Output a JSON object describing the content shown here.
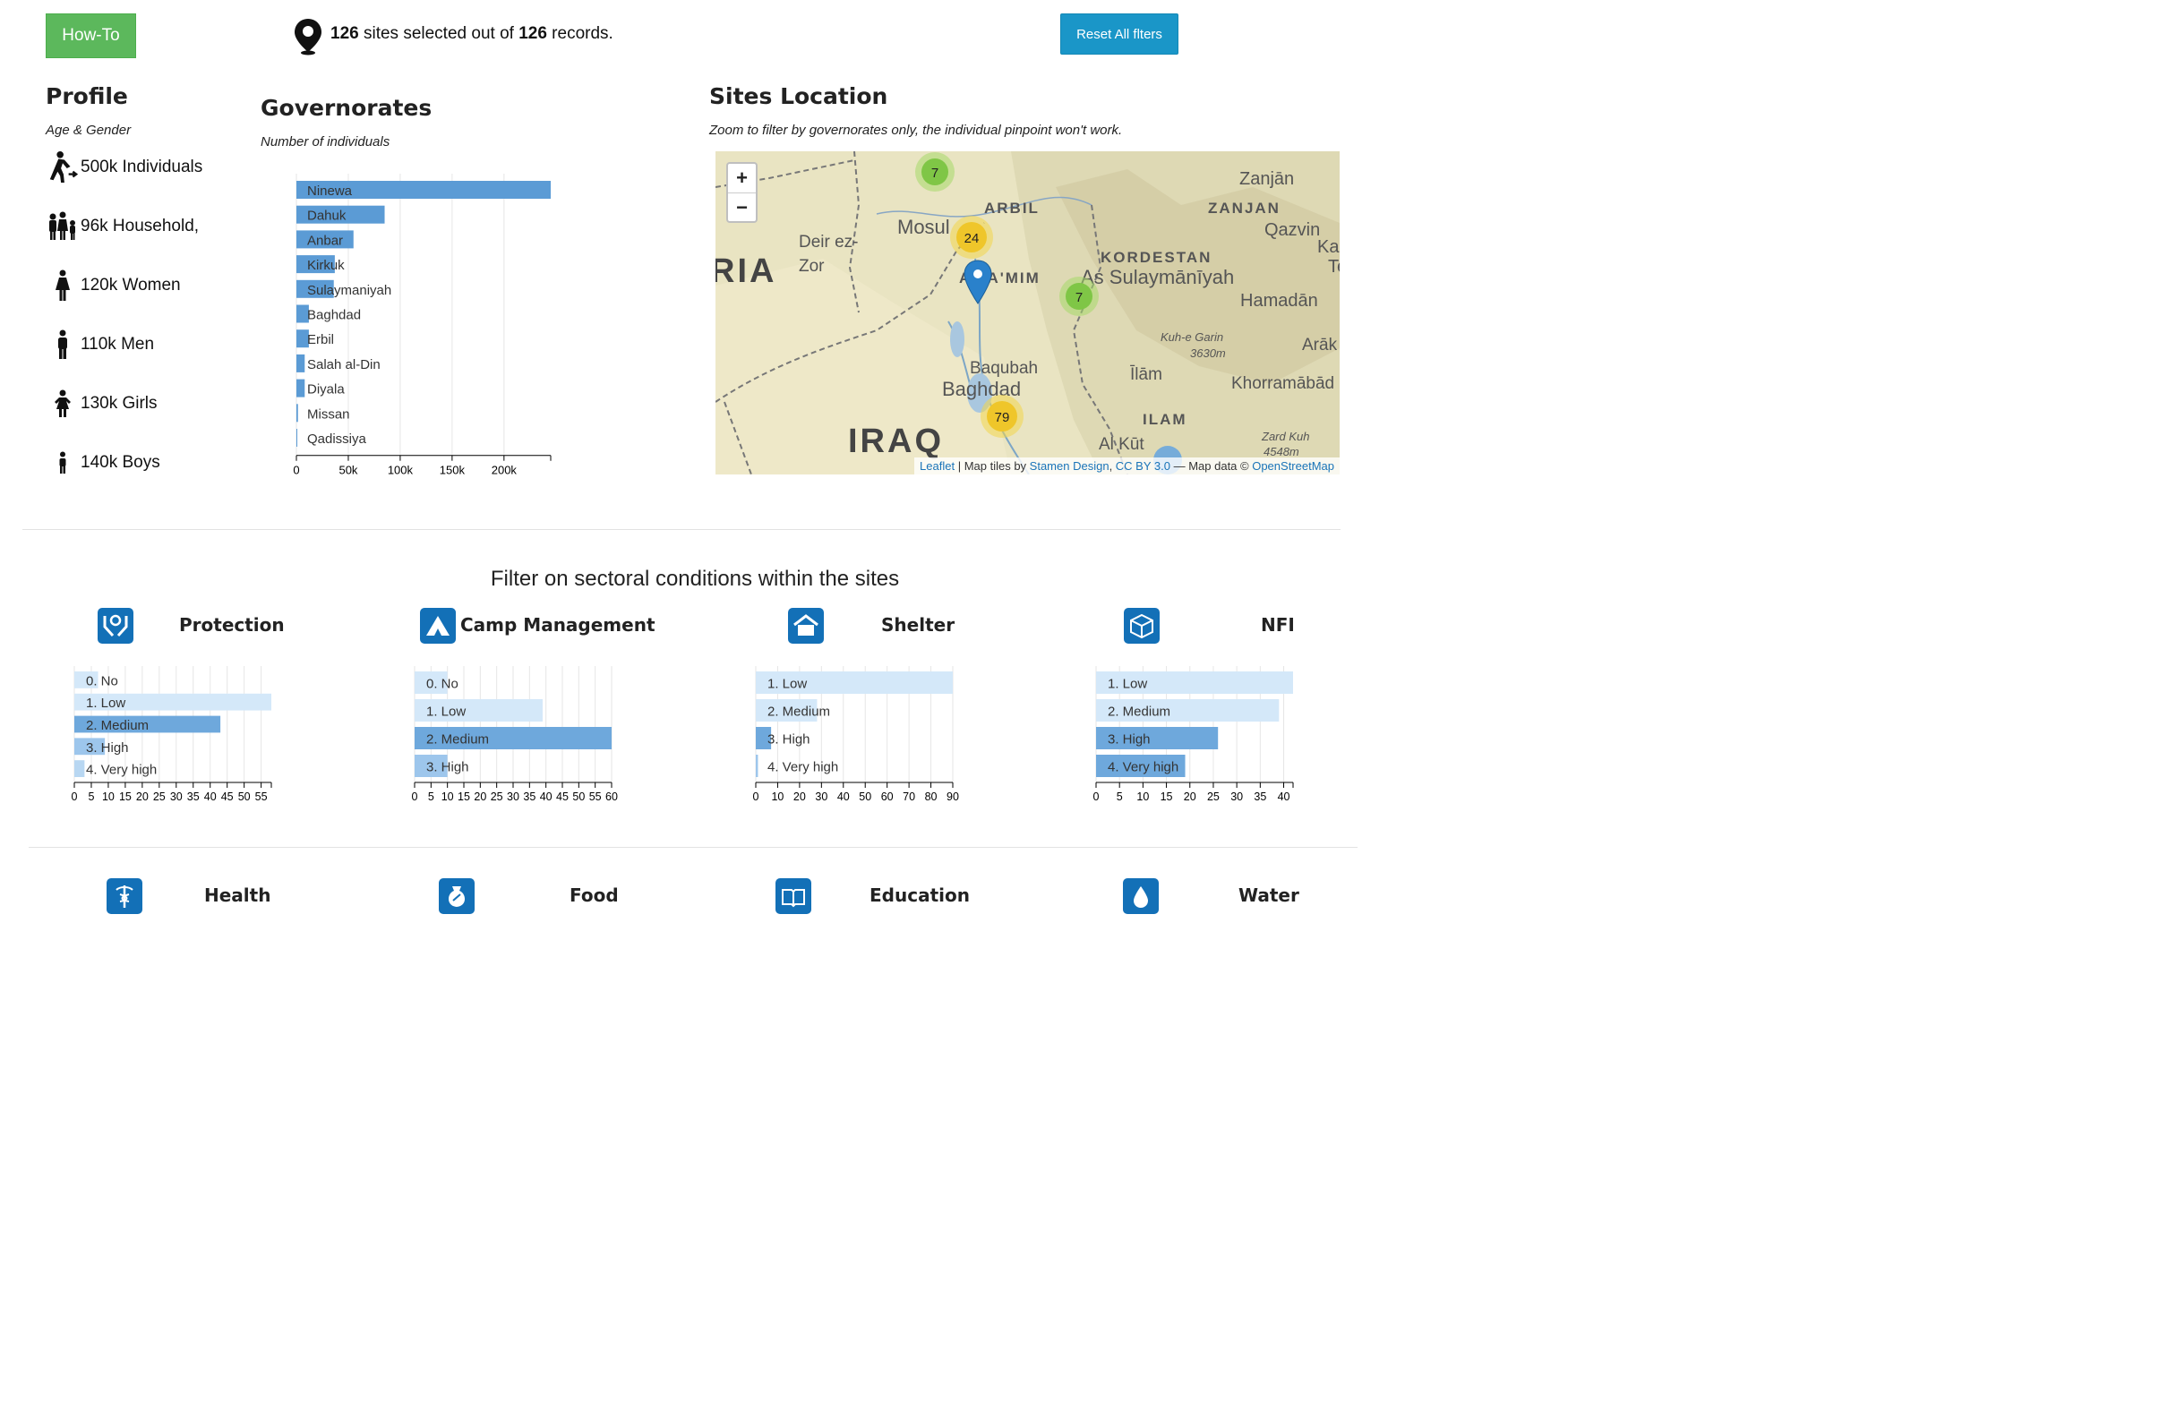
{
  "header": {
    "howto_label": "How-To",
    "reset_label": "Reset All flters",
    "sites_selected": "126",
    "sites_text_mid": " sites selected out of ",
    "records_total": "126",
    "sites_text_end": " records."
  },
  "profile": {
    "title": "Profile",
    "subtitle": "Age & Gender",
    "items": [
      {
        "icon": "walking-person-icon",
        "label": "500k Individuals"
      },
      {
        "icon": "family-icon",
        "label": "96k Household,"
      },
      {
        "icon": "woman-icon",
        "label": "120k Women"
      },
      {
        "icon": "man-icon",
        "label": "110k Men"
      },
      {
        "icon": "girl-icon",
        "label": "130k Girls"
      },
      {
        "icon": "boy-icon",
        "label": "140k Boys"
      }
    ]
  },
  "governorates": {
    "title": "Governorates",
    "subtitle": "Number of individuals",
    "chart_data": {
      "type": "bar",
      "orientation": "horizontal",
      "categories": [
        "Ninewa",
        "Dahuk",
        "Anbar",
        "Kirkuk",
        "Sulaymaniyah",
        "Baghdad",
        "Erbil",
        "Salah al-Din",
        "Diyala",
        "Missan",
        "Qadissiya"
      ],
      "values": [
        245000,
        85000,
        55000,
        37000,
        36000,
        12000,
        12000,
        8000,
        8000,
        1500,
        500
      ],
      "xlim": [
        0,
        245000
      ],
      "xticks": [
        "0",
        "50k",
        "100k",
        "150k",
        "200k"
      ],
      "xtick_values": [
        0,
        50000,
        100000,
        150000,
        200000
      ],
      "color": "#5b9bd5",
      "grid": true
    }
  },
  "sites_location": {
    "title": "Sites Location",
    "subtitle": "Zoom to filter by governorates only, the individual pinpoint won't work.",
    "zoom_in": "+",
    "zoom_out": "−",
    "attribution": {
      "leaflet": "Leaflet",
      "mid": " | Map tiles by ",
      "stamen": "Stamen Design",
      "sep": ", ",
      "ccby": "CC BY 3.0",
      "dash": " — Map data © ",
      "osm": "OpenStreetMap"
    },
    "clusters": [
      "7",
      "24",
      "7",
      "79"
    ],
    "places": [
      "Zanjān",
      "ZANJAN",
      "Qazvin",
      "ARBIL",
      "Mosul",
      "Deir ez-",
      "Zor",
      "KORDESTAN",
      "As Sulaymānīyah",
      "Hamadān",
      "A'TA'MIM",
      "Kuh-e Garin",
      "3630m",
      "Arāk",
      "Baqubah",
      "Baghdad",
      "Īlām",
      "Khorramābād",
      "ILAM",
      "IRAQ",
      "Al Kūt",
      "Zard Kuh",
      "4548m",
      "RIA",
      "Ka",
      "Te"
    ]
  },
  "filters": {
    "title": "Filter on sectoral conditions within the sites",
    "sectors": [
      {
        "name": "Protection",
        "icon": "protection-hands-icon",
        "chart_data": {
          "type": "bar",
          "orientation": "horizontal",
          "categories": [
            "0. No",
            "1. Low",
            "2. Medium",
            "3. High",
            "4. Very high"
          ],
          "values": [
            7,
            58,
            43,
            9,
            3
          ],
          "xlim": [
            0,
            58
          ],
          "xticks": [
            "0",
            "5",
            "10",
            "15",
            "20",
            "25",
            "30",
            "35",
            "40",
            "45",
            "50",
            "55"
          ],
          "xtick_values": [
            0,
            5,
            10,
            15,
            20,
            25,
            30,
            35,
            40,
            45,
            50,
            55
          ],
          "colors": [
            "#d4e8f9",
            "#d4e8f9",
            "#6ea8dc",
            "#9dc6ec",
            "#b8d7f2"
          ],
          "grid": true
        }
      },
      {
        "name": "Camp Management",
        "icon": "tent-icon",
        "chart_data": {
          "type": "bar",
          "orientation": "horizontal",
          "categories": [
            "0. No",
            "1. Low",
            "2. Medium",
            "3. High"
          ],
          "values": [
            10,
            39,
            60,
            10
          ],
          "xlim": [
            0,
            60
          ],
          "xticks": [
            "0",
            "5",
            "10",
            "15",
            "20",
            "25",
            "30",
            "35",
            "40",
            "45",
            "50",
            "55",
            "60"
          ],
          "xtick_values": [
            0,
            5,
            10,
            15,
            20,
            25,
            30,
            35,
            40,
            45,
            50,
            55,
            60
          ],
          "colors": [
            "#d4e8f9",
            "#d4e8f9",
            "#6ea8dc",
            "#9dc6ec"
          ],
          "grid": true
        }
      },
      {
        "name": "Shelter",
        "icon": "house-icon",
        "chart_data": {
          "type": "bar",
          "orientation": "horizontal",
          "categories": [
            "1. Low",
            "2. Medium",
            "3. High",
            "4. Very high"
          ],
          "values": [
            90,
            28,
            7,
            1
          ],
          "xlim": [
            0,
            90
          ],
          "xticks": [
            "0",
            "10",
            "20",
            "30",
            "40",
            "50",
            "60",
            "70",
            "80",
            "90"
          ],
          "xtick_values": [
            0,
            10,
            20,
            30,
            40,
            50,
            60,
            70,
            80,
            90
          ],
          "colors": [
            "#d4e8f9",
            "#d4e8f9",
            "#6ea8dc",
            "#9dc6ec"
          ],
          "grid": true
        }
      },
      {
        "name": "NFI",
        "icon": "box-icon",
        "chart_data": {
          "type": "bar",
          "orientation": "horizontal",
          "categories": [
            "1. Low",
            "2. Medium",
            "3. High",
            "4. Very high"
          ],
          "values": [
            42,
            39,
            26,
            19
          ],
          "xlim": [
            0,
            42
          ],
          "xticks": [
            "0",
            "5",
            "10",
            "15",
            "20",
            "25",
            "30",
            "35",
            "40"
          ],
          "xtick_values": [
            0,
            5,
            10,
            15,
            20,
            25,
            30,
            35,
            40
          ],
          "colors": [
            "#d4e8f9",
            "#d4e8f9",
            "#6ea8dc",
            "#6ea8dc"
          ],
          "grid": true
        }
      }
    ],
    "sectors_row2": [
      {
        "name": "Health",
        "icon": "caduceus-icon"
      },
      {
        "name": "Food",
        "icon": "food-sack-icon"
      },
      {
        "name": "Education",
        "icon": "book-icon"
      },
      {
        "name": "Water",
        "icon": "water-drop-icon"
      }
    ]
  }
}
